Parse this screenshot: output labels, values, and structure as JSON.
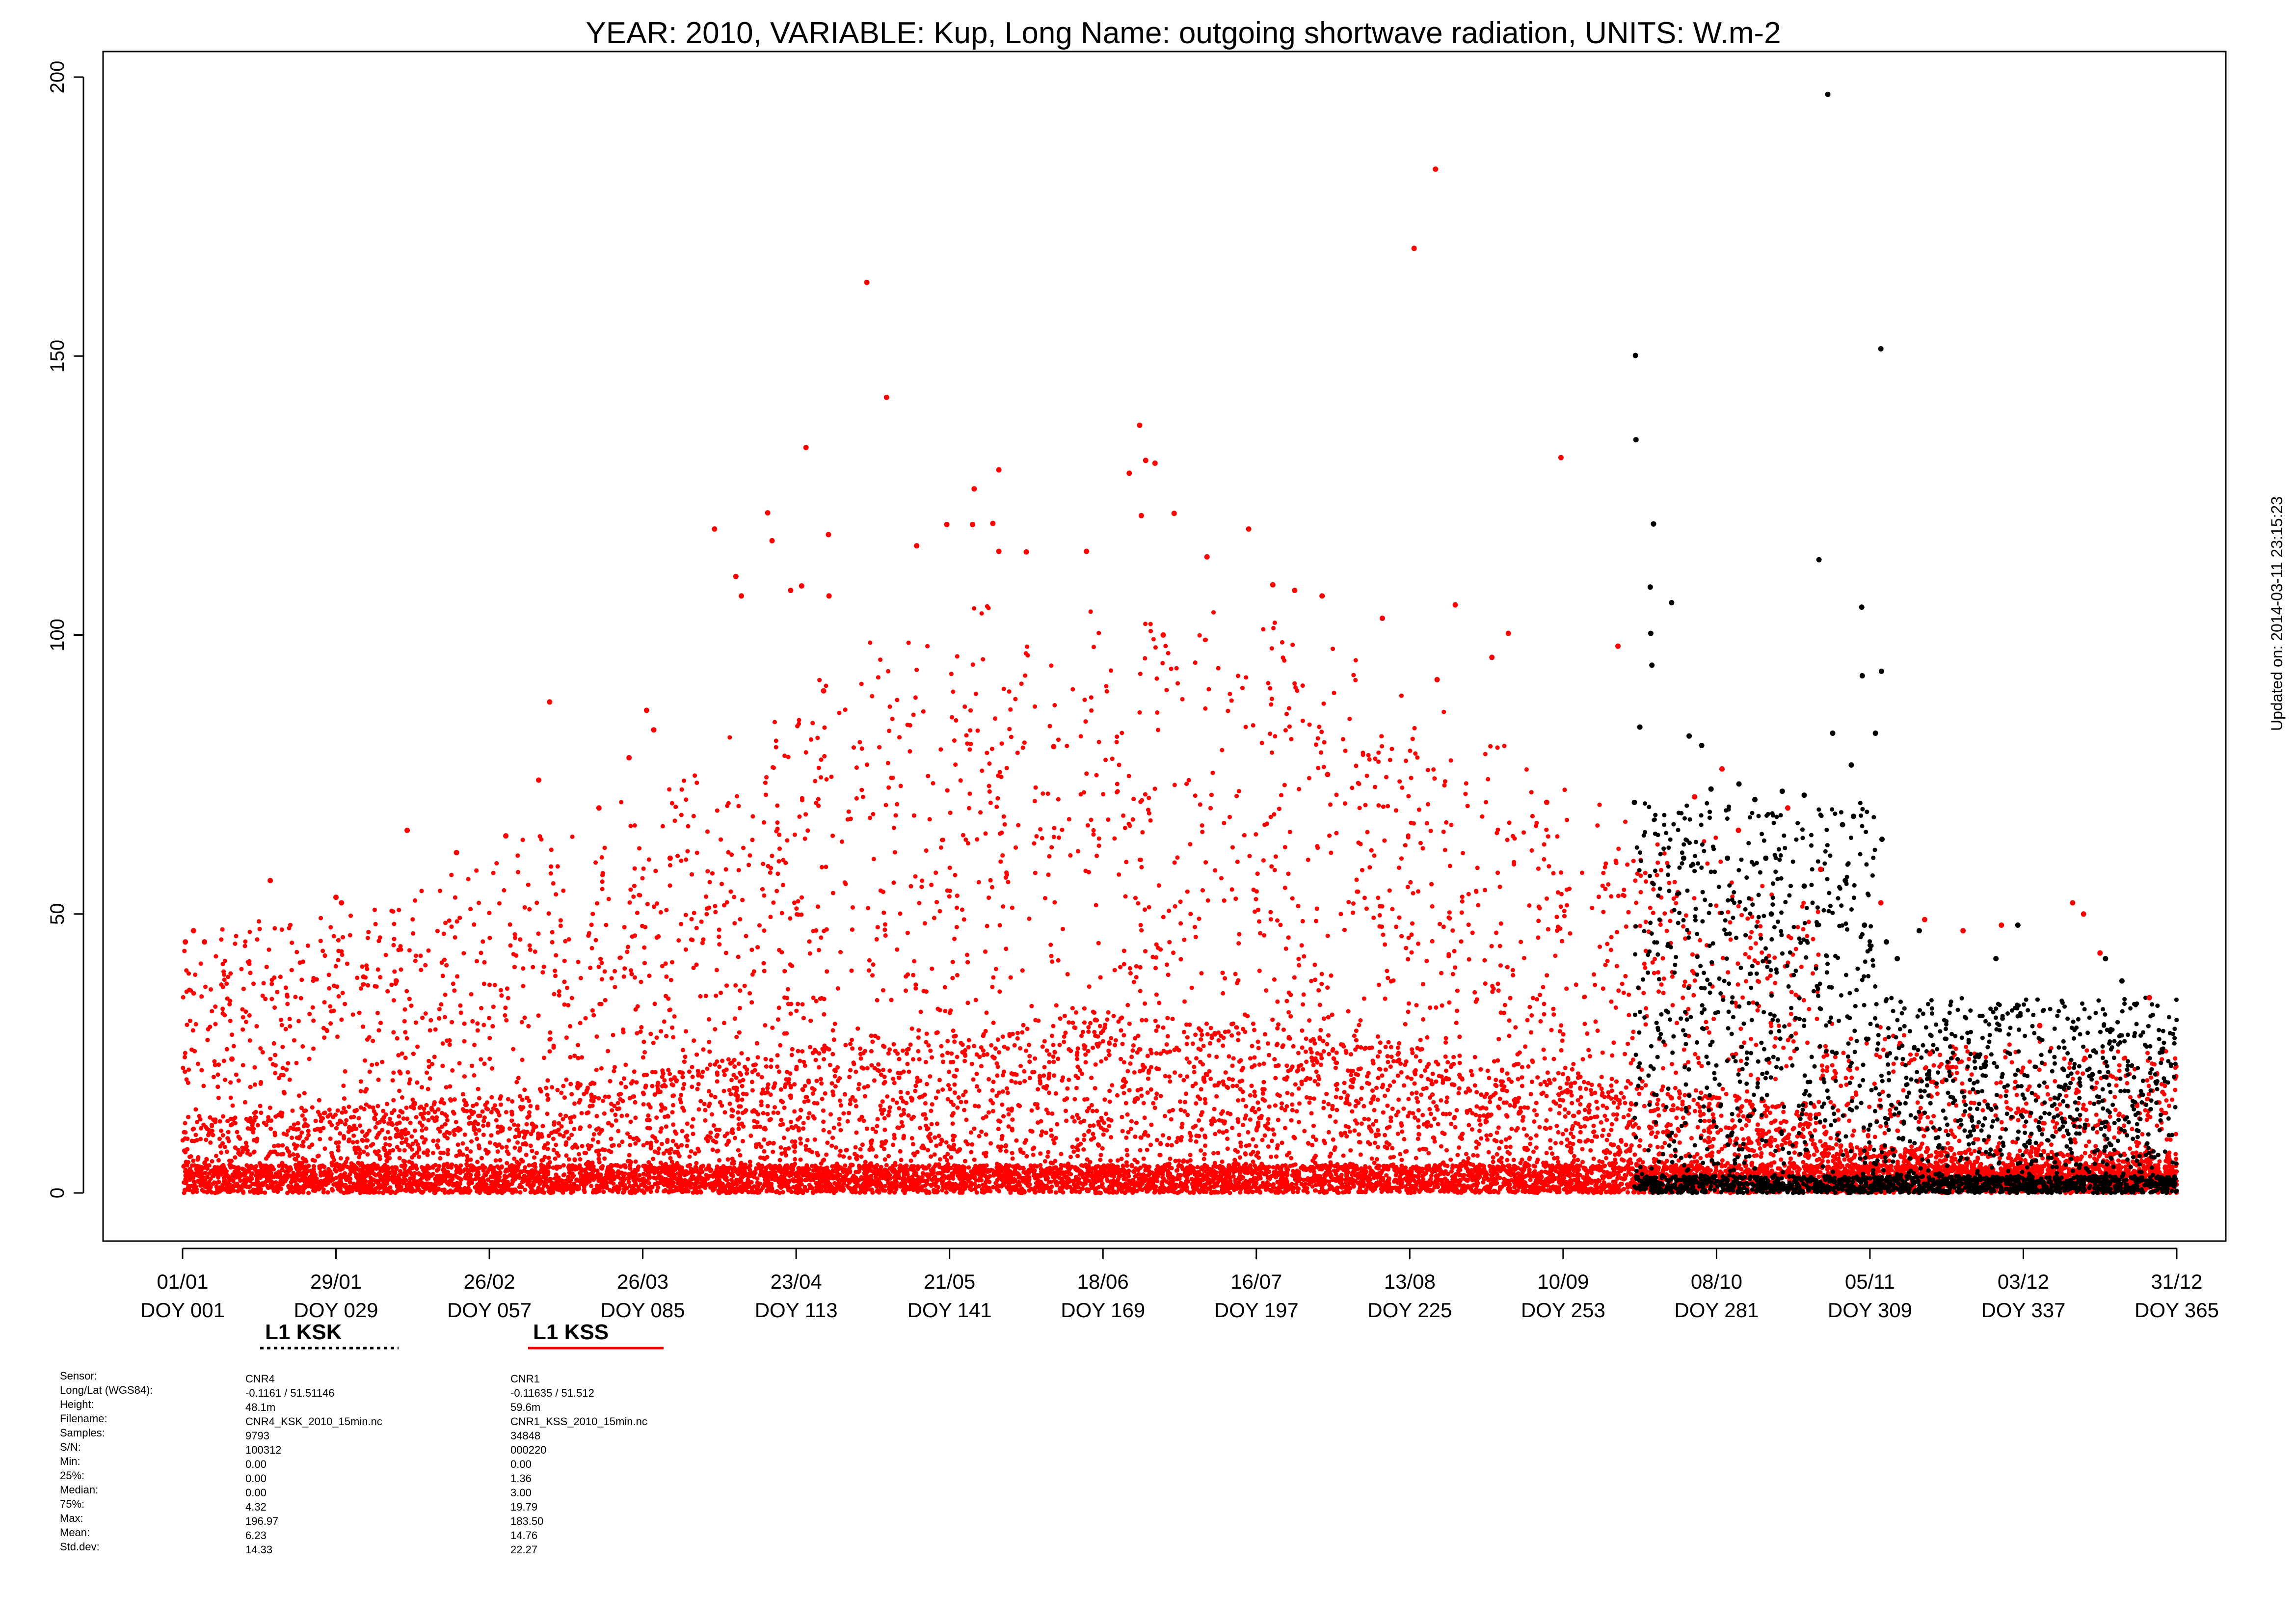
{
  "chart_data": {
    "type": "scatter",
    "title": "YEAR: 2010, VARIABLE: Kup, Long Name: outgoing  shortwave  radiation, UNITS: W.m-2",
    "xlabel": "",
    "ylabel": "",
    "xlim": [
      1,
      365
    ],
    "ylim": [
      -8,
      205
    ],
    "y_ticks": [
      0,
      50,
      100,
      150,
      200
    ],
    "x_ticks": [
      {
        "doy": 1,
        "date": "01/01",
        "label": "DOY 001"
      },
      {
        "doy": 29,
        "date": "29/01",
        "label": "DOY 029"
      },
      {
        "doy": 57,
        "date": "26/02",
        "label": "DOY 057"
      },
      {
        "doy": 85,
        "date": "26/03",
        "label": "DOY 085"
      },
      {
        "doy": 113,
        "date": "23/04",
        "label": "DOY 113"
      },
      {
        "doy": 141,
        "date": "21/05",
        "label": "DOY 141"
      },
      {
        "doy": 169,
        "date": "18/06",
        "label": "DOY 169"
      },
      {
        "doy": 197,
        "date": "16/07",
        "label": "DOY 197"
      },
      {
        "doy": 225,
        "date": "13/08",
        "label": "DOY 225"
      },
      {
        "doy": 253,
        "date": "10/09",
        "label": "DOY 253"
      },
      {
        "doy": 281,
        "date": "08/10",
        "label": "DOY 281"
      },
      {
        "doy": 309,
        "date": "05/11",
        "label": "DOY 309"
      },
      {
        "doy": 337,
        "date": "03/12",
        "label": "DOY 337"
      },
      {
        "doy": 365,
        "date": "31/12",
        "label": "DOY 365"
      }
    ],
    "grid": false,
    "legend": "below-left",
    "series": [
      {
        "name": "L1 KSK",
        "color": "#000000",
        "line_style": "dotted",
        "x_range": [
          266,
          365
        ],
        "points": [
          [
            266.2,
            150.1
          ],
          [
            266.3,
            135.0
          ],
          [
            269.5,
            119.9
          ],
          [
            268.9,
            108.6
          ],
          [
            272.8,
            105.8
          ],
          [
            269.0,
            100.3
          ],
          [
            269.2,
            94.6
          ],
          [
            285.1,
            73.3
          ],
          [
            301.3,
            196.9
          ],
          [
            299.7,
            113.5
          ],
          [
            311.0,
            151.3
          ],
          [
            311.1,
            93.5
          ],
          [
            311.2,
            63.4
          ],
          [
            307.5,
            105.0
          ],
          [
            307.6,
            92.7
          ],
          [
            310.0,
            82.4
          ],
          [
            302.2,
            82.4
          ],
          [
            305.6,
            76.7
          ],
          [
            306.0,
            67.5
          ],
          [
            276.0,
            81.9
          ],
          [
            278.3,
            80.2
          ],
          [
            280.0,
            72.4
          ],
          [
            288.0,
            70.5
          ],
          [
            293.0,
            72.0
          ],
          [
            297.0,
            71.3
          ],
          [
            304.0,
            66.0
          ],
          [
            290.0,
            60.0
          ],
          [
            297.0,
            55.0
          ],
          [
            304.5,
            56.0
          ],
          [
            267.0,
            83.5
          ],
          [
            266.0,
            70.0
          ],
          [
            275.0,
            60.0
          ],
          [
            283.0,
            60.0
          ],
          [
            291.0,
            50.0
          ],
          [
            308.0,
            48.0
          ],
          [
            312.0,
            45.0
          ],
          [
            314.0,
            42.0
          ],
          [
            318.0,
            47.0
          ],
          [
            332.0,
            42.0
          ],
          [
            336.0,
            48.0
          ],
          [
            352.0,
            42.0
          ],
          [
            355.0,
            38.0
          ]
        ]
      },
      {
        "name": "L1 KSS",
        "color": "#ff0000",
        "line_style": "solid",
        "x_range": [
          1,
          365
        ],
        "points": [
          [
            229.7,
            183.5
          ],
          [
            225.8,
            169.3
          ],
          [
            125.9,
            163.2
          ],
          [
            129.5,
            142.6
          ],
          [
            114.8,
            133.6
          ],
          [
            175.7,
            137.6
          ],
          [
            176.8,
            131.3
          ],
          [
            178.5,
            130.8
          ],
          [
            145.5,
            126.2
          ],
          [
            150.0,
            129.6
          ],
          [
            252.6,
            131.8
          ],
          [
            98.1,
            119.0
          ],
          [
            107.8,
            121.9
          ],
          [
            108.6,
            116.9
          ],
          [
            118.9,
            118.0
          ],
          [
            140.5,
            119.8
          ],
          [
            145.2,
            119.8
          ],
          [
            148.9,
            120.0
          ],
          [
            173.8,
            129.0
          ],
          [
            176.0,
            121.4
          ],
          [
            182.0,
            121.8
          ],
          [
            195.6,
            119.0
          ],
          [
            102.0,
            110.5
          ],
          [
            103.0,
            107.0
          ],
          [
            112.0,
            108.0
          ],
          [
            114.0,
            108.8
          ],
          [
            119.0,
            107.0
          ],
          [
            135.0,
            116.0
          ],
          [
            155.0,
            114.9
          ],
          [
            166.0,
            115.0
          ],
          [
            188.0,
            114.0
          ],
          [
            204.0,
            108.0
          ],
          [
            209.0,
            107.0
          ],
          [
            220.0,
            103.0
          ],
          [
            233.3,
            105.4
          ],
          [
            243.0,
            100.3
          ],
          [
            240.0,
            96.0
          ],
          [
            200.0,
            109.0
          ],
          [
            150.0,
            115.0
          ],
          [
            85.7,
            86.5
          ],
          [
            68.0,
            88.0
          ],
          [
            82.5,
            78.0
          ],
          [
            87.0,
            83.0
          ],
          [
            118.0,
            90.0
          ],
          [
            180.0,
            100.0
          ],
          [
            230.0,
            92.0
          ],
          [
            263.0,
            98.0
          ],
          [
            282.0,
            76.0
          ],
          [
            277.0,
            71.0
          ],
          [
            285.0,
            65.0
          ],
          [
            294.0,
            69.0
          ],
          [
            300.0,
            58.0
          ],
          [
            311.0,
            52.0
          ],
          [
            319.0,
            49.0
          ],
          [
            326.0,
            47.0
          ],
          [
            333.0,
            48.0
          ],
          [
            346.0,
            52.0
          ],
          [
            348.0,
            50.0
          ],
          [
            351.0,
            43.0
          ],
          [
            1.5,
            45.0
          ],
          [
            3.0,
            47.0
          ],
          [
            5.0,
            45.0
          ],
          [
            17.0,
            56.0
          ],
          [
            29.0,
            53.0
          ],
          [
            30.0,
            52.0
          ],
          [
            42.0,
            65.0
          ],
          [
            51.0,
            61.0
          ],
          [
            60.0,
            64.0
          ],
          [
            66.0,
            74.0
          ],
          [
            77.0,
            69.0
          ],
          [
            10.0,
            24.0
          ],
          [
            40.0,
            38.0
          ],
          [
            90.0,
            60.0
          ],
          [
            160.0,
            80.0
          ],
          [
            210.0,
            75.0
          ],
          [
            250.0,
            70.0
          ],
          [
            320.0,
            25.0
          ],
          [
            340.0,
            30.0
          ],
          [
            360.0,
            35.0
          ]
        ]
      }
    ]
  },
  "side_note": "Updated on: 2014-03-11 23:15:23",
  "info_table": {
    "row_labels": [
      "Sensor:",
      "Long/Lat (WGS84):",
      "Height:",
      "Filename:",
      "Samples:",
      "S/N:",
      "Min:",
      "25%:",
      "Median:",
      "75%:",
      "Max:",
      "Mean:",
      "Std.dev:"
    ],
    "columns": [
      {
        "values": [
          "CNR4",
          "-0.1161 / 51.51146",
          "48.1m",
          "CNR4_KSK_2010_15min.nc",
          "9793",
          "100312",
          "0.00",
          "0.00",
          "0.00",
          "4.32",
          "196.97",
          "6.23",
          "14.33"
        ]
      },
      {
        "values": [
          "CNR1",
          "-0.11635 / 51.512",
          "59.6m",
          "CNR1_KSS_2010_15min.nc",
          "34848",
          "000220",
          "0.00",
          "1.36",
          "3.00",
          "19.79",
          "183.50",
          "14.76",
          "22.27"
        ]
      }
    ]
  }
}
